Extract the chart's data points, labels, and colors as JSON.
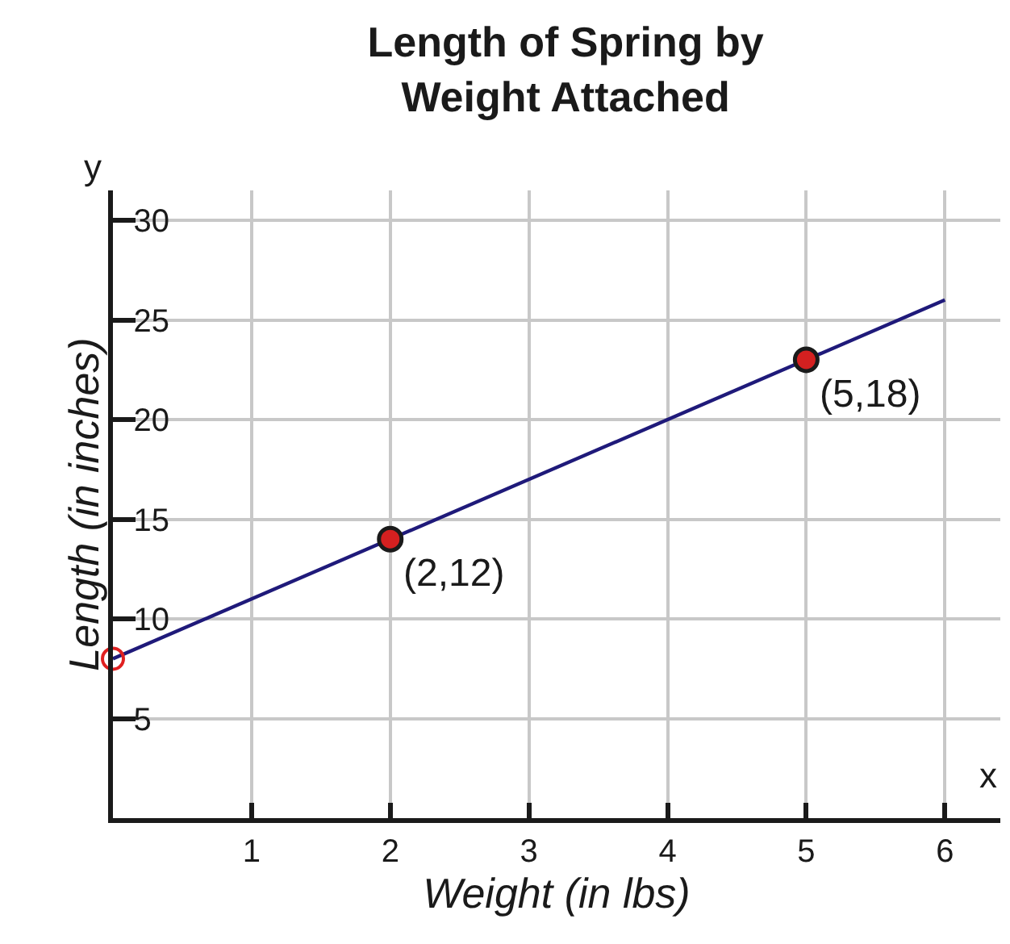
{
  "chart_data": {
    "type": "line",
    "title": "Length of Spring by\nWeight Attached",
    "xlabel": "Weight (in lbs)",
    "ylabel": "Length (in inches)",
    "xlim": [
      0,
      6.4
    ],
    "ylim": [
      0,
      31.5
    ],
    "xticks": [
      1,
      2,
      3,
      4,
      5,
      6
    ],
    "yticks": [
      5,
      10,
      15,
      20,
      25,
      30
    ],
    "grid": true,
    "legend": false,
    "series": [
      {
        "color": "#1f1a7a",
        "x": [
          0,
          6
        ],
        "values": [
          8,
          26
        ],
        "marker": "none",
        "line_style": "solid"
      },
      {
        "type": "scatter",
        "color": "#d42020",
        "x": [
          2,
          5
        ],
        "values": [
          14,
          23
        ],
        "marker": "circle"
      },
      {
        "type": "scatter",
        "color": "#e02020",
        "x": [
          0
        ],
        "values": [
          8
        ],
        "marker": "circle-open"
      }
    ],
    "annotations": [
      {
        "text": "(2,12)",
        "x": 2,
        "y": 14
      },
      {
        "text": "(5,18)",
        "x": 5,
        "y": 23
      },
      "x",
      "y"
    ]
  }
}
